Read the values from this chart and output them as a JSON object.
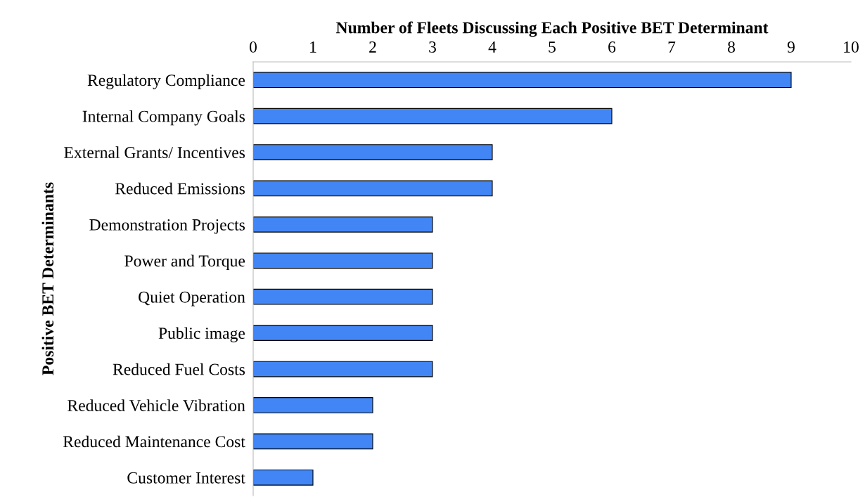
{
  "chart_data": {
    "type": "bar",
    "orientation": "horizontal",
    "xlabel": "Number of Fleets Discussing Each Positive BET Determinant",
    "ylabel": "Positive BET Determinants",
    "categories": [
      "Regulatory Compliance",
      "Internal Company Goals",
      "External Grants/ Incentives",
      "Reduced Emissions",
      "Demonstration Projects",
      "Power and Torque",
      "Quiet Operation",
      "Public image",
      "Reduced Fuel Costs",
      "Reduced Vehicle Vibration",
      "Reduced Maintenance Cost",
      "Customer Interest"
    ],
    "values": [
      9,
      6,
      4,
      4,
      3,
      3,
      3,
      3,
      3,
      2,
      2,
      1
    ],
    "color": "#4285f4",
    "xlim": [
      0,
      10
    ],
    "xticks": [
      0,
      1,
      2,
      3,
      4,
      5,
      6,
      7,
      8,
      9,
      10
    ],
    "grid": false,
    "legend": false
  }
}
